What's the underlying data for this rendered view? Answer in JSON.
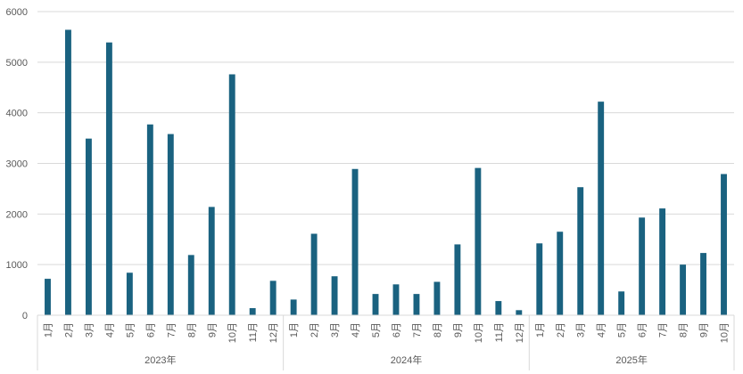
{
  "chart_data": {
    "type": "bar",
    "categories": [
      "1月",
      "2月",
      "3月",
      "4月",
      "5月",
      "6月",
      "7月",
      "8月",
      "9月",
      "10月",
      "11月",
      "12月",
      "1月",
      "2月",
      "3月",
      "4月",
      "5月",
      "6月",
      "7月",
      "8月",
      "9月",
      "10月",
      "11月",
      "12月",
      "1月",
      "2月",
      "3月",
      "4月",
      "5月",
      "6月",
      "7月",
      "8月",
      "9月",
      "10月"
    ],
    "groups": [
      {
        "label": "2023年",
        "count": 12
      },
      {
        "label": "2024年",
        "count": 12
      },
      {
        "label": "2025年",
        "count": 10
      }
    ],
    "values": [
      720,
      5640,
      3490,
      5390,
      840,
      3770,
      3580,
      1190,
      2140,
      4760,
      140,
      680,
      310,
      1610,
      770,
      2890,
      420,
      610,
      420,
      660,
      1400,
      2910,
      280,
      100,
      1420,
      1650,
      2530,
      4220,
      470,
      1930,
      2110,
      1000,
      1230,
      2790
    ],
    "ylim": [
      0,
      6000
    ],
    "yticks": [
      0,
      1000,
      2000,
      3000,
      4000,
      5000,
      6000
    ],
    "grid": true,
    "bar_color": "#1a6280",
    "grid_color": "#d9d9d9",
    "title": "",
    "xlabel": "",
    "ylabel": ""
  }
}
